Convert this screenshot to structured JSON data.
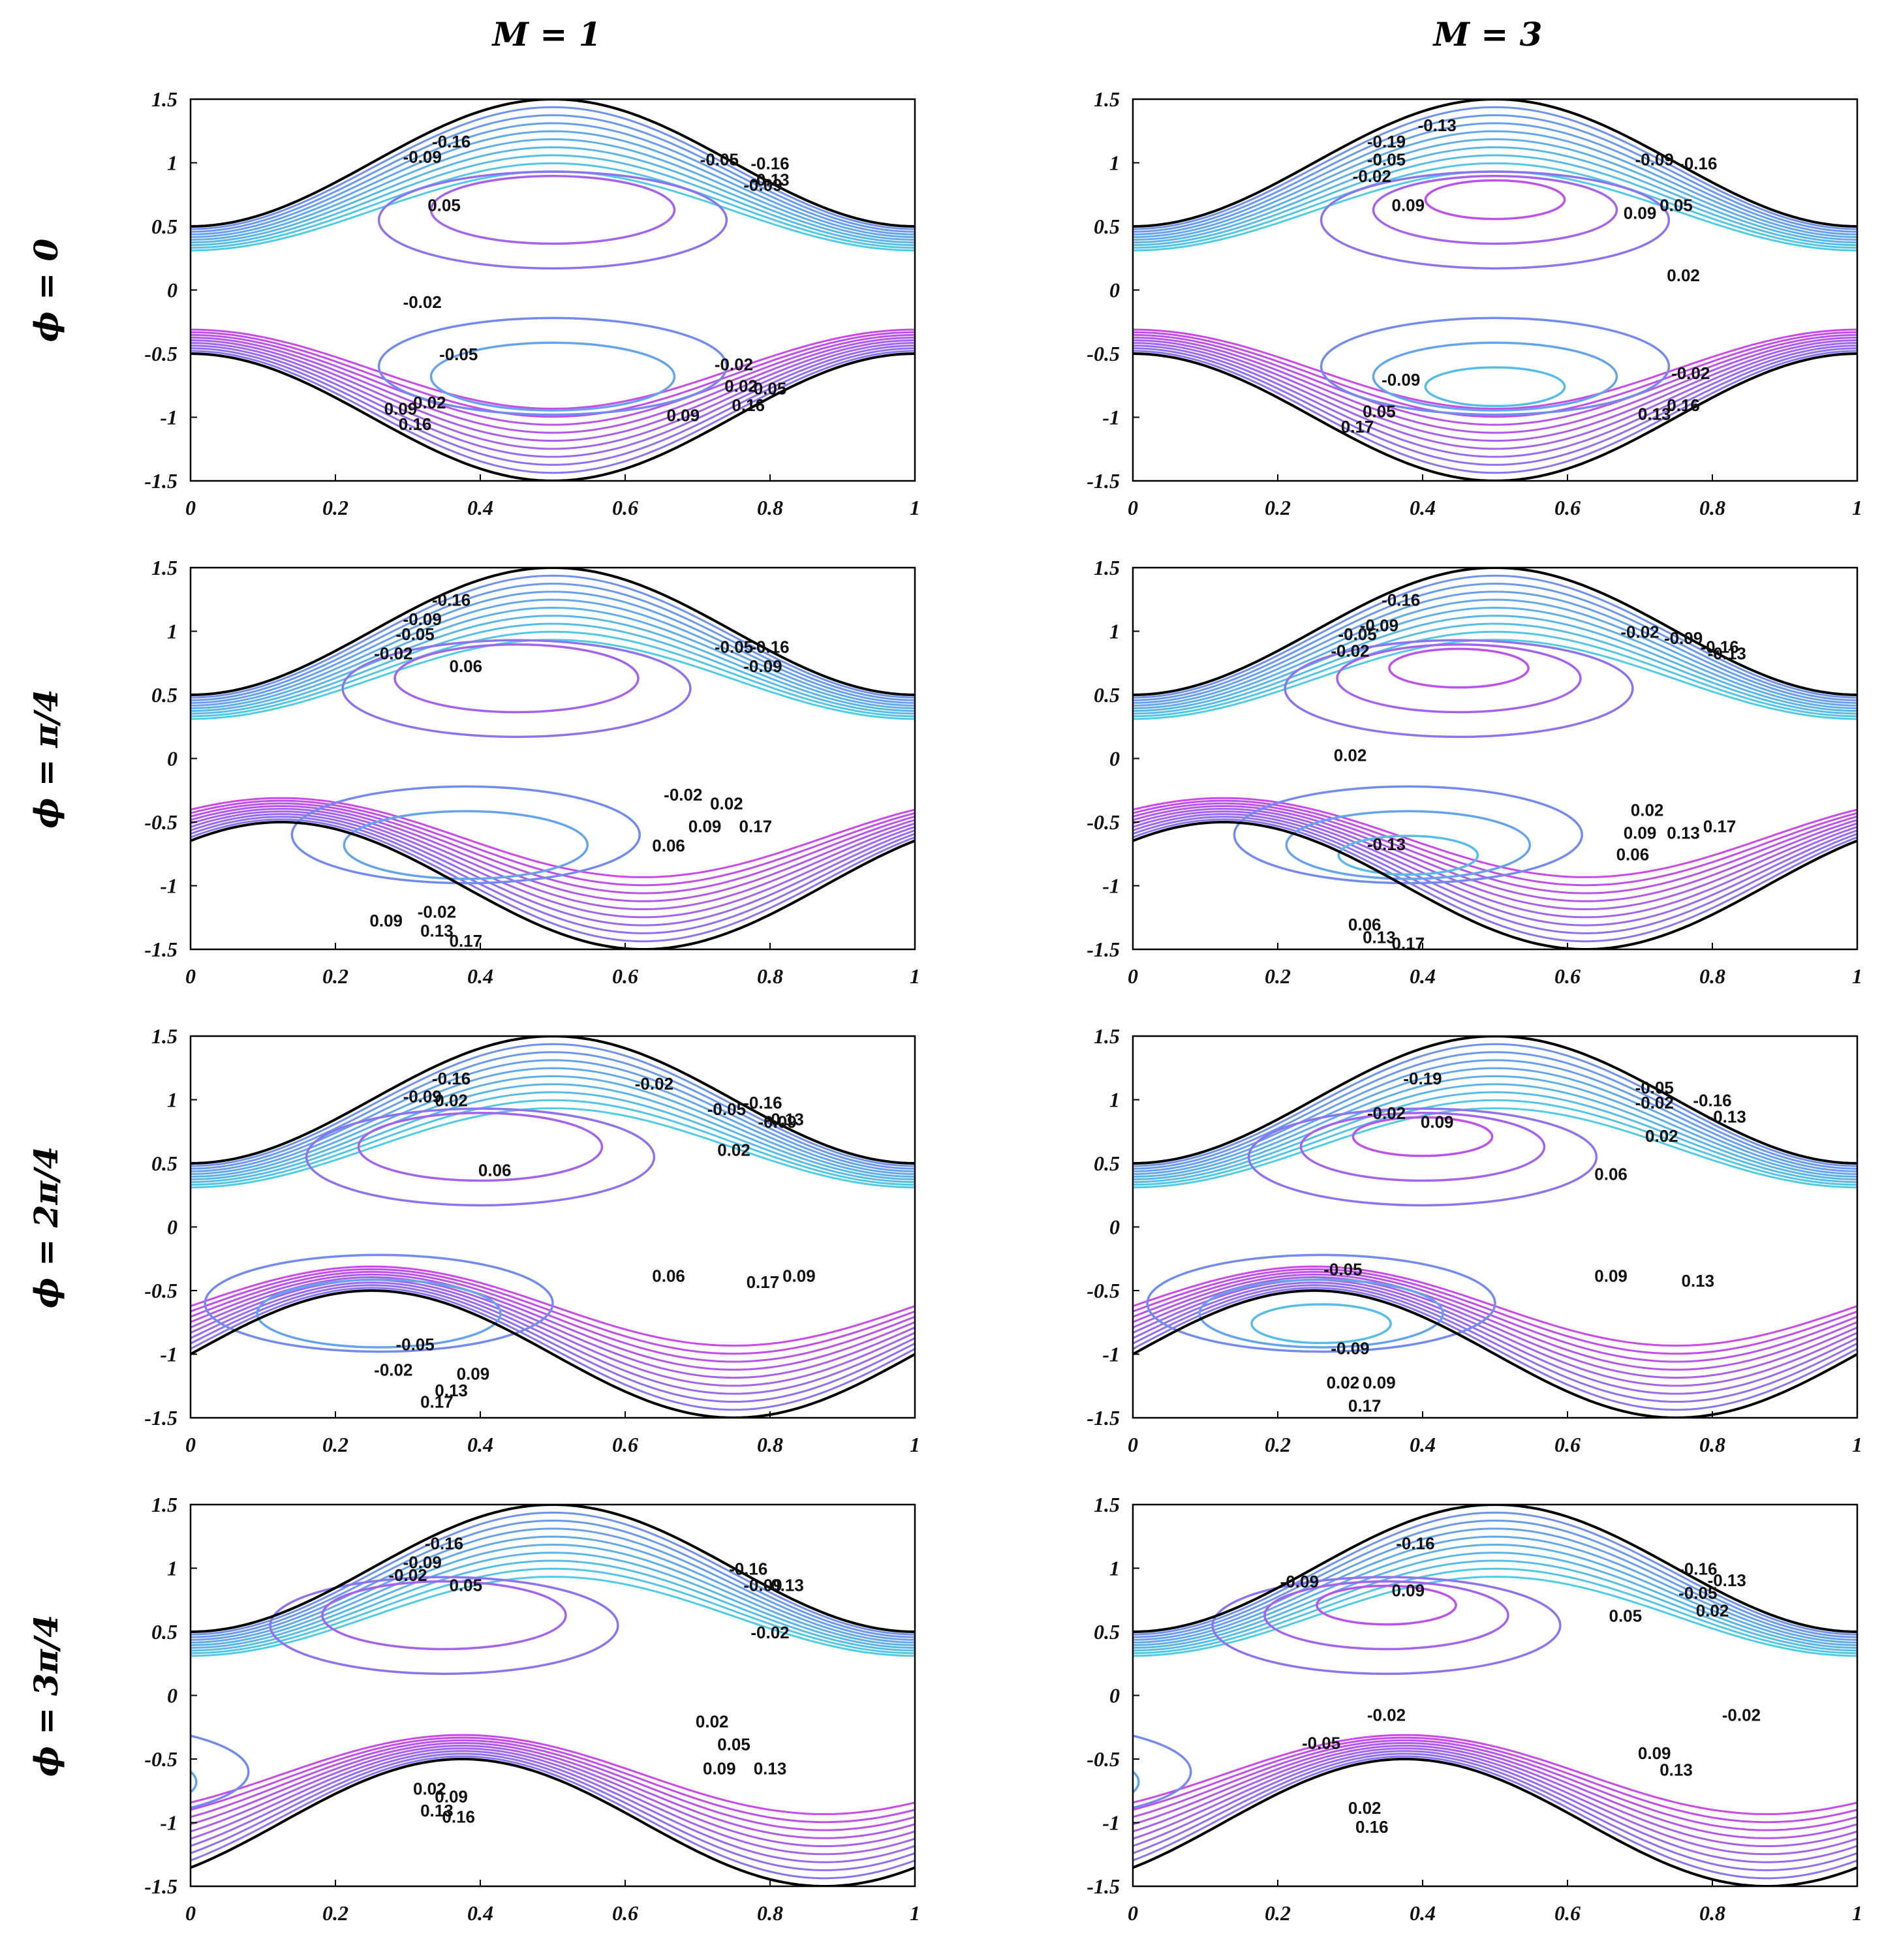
{
  "chart_data": {
    "type": "contour",
    "description_columns": [
      "M = 1",
      "M = 3"
    ],
    "column_titles": [
      "M = 1",
      "M = 3"
    ],
    "row_titles": [
      "ϕ = 0",
      "ϕ = π/4",
      "ϕ = 2π/4",
      "ϕ = 3π/4"
    ],
    "phases": [
      0,
      0.7854,
      1.5708,
      2.3562
    ],
    "xlim": [
      0,
      1
    ],
    "ylim": [
      -1.5,
      1.5
    ],
    "xticks": [
      "0",
      "0.2",
      "0.4",
      "0.6",
      "0.8",
      "1"
    ],
    "yticks": [
      "1.5",
      "1",
      "0.5",
      "0",
      "-0.5",
      "-1",
      "-1.5"
    ],
    "panels": [
      {
        "row": 0,
        "col": 0,
        "labels": [
          {
            "t": "-0.16",
            "x": 0.36,
            "y": 1.12
          },
          {
            "t": "-0.09",
            "x": 0.32,
            "y": 1.0
          },
          {
            "t": "-0.05",
            "x": 0.73,
            "y": 0.98
          },
          {
            "t": "-0.16",
            "x": 0.8,
            "y": 0.95
          },
          {
            "t": "-0.13",
            "x": 0.8,
            "y": 0.82
          },
          {
            "t": "-0.09",
            "x": 0.79,
            "y": 0.78
          },
          {
            "t": "0.05",
            "x": 0.35,
            "y": 0.62
          },
          {
            "t": "-0.02",
            "x": 0.32,
            "y": -0.14
          },
          {
            "t": "-0.05",
            "x": 0.37,
            "y": -0.55
          },
          {
            "t": "-0.02",
            "x": 0.75,
            "y": -0.63
          },
          {
            "t": "0.02",
            "x": 0.33,
            "y": -0.93
          },
          {
            "t": "0.09",
            "x": 0.29,
            "y": -0.98
          },
          {
            "t": "0.16",
            "x": 0.31,
            "y": -1.1
          },
          {
            "t": "0.02",
            "x": 0.76,
            "y": -0.8
          },
          {
            "t": "0.05",
            "x": 0.8,
            "y": -0.82
          },
          {
            "t": "0.16",
            "x": 0.77,
            "y": -0.95
          },
          {
            "t": "0.09",
            "x": 0.68,
            "y": -1.03
          }
        ]
      },
      {
        "row": 0,
        "col": 1,
        "labels": [
          {
            "t": "-0.13",
            "x": 0.42,
            "y": 1.25
          },
          {
            "t": "-0.19",
            "x": 0.35,
            "y": 1.12
          },
          {
            "t": "-0.05",
            "x": 0.35,
            "y": 0.98
          },
          {
            "t": "-0.02",
            "x": 0.33,
            "y": 0.85
          },
          {
            "t": "-0.09",
            "x": 0.72,
            "y": 0.98
          },
          {
            "t": "-0.16",
            "x": 0.78,
            "y": 0.95
          },
          {
            "t": "0.09",
            "x": 0.38,
            "y": 0.62
          },
          {
            "t": "0.09",
            "x": 0.7,
            "y": 0.56
          },
          {
            "t": "0.05",
            "x": 0.75,
            "y": 0.62
          },
          {
            "t": "0.02",
            "x": 0.76,
            "y": 0.07
          },
          {
            "t": "-0.09",
            "x": 0.37,
            "y": -0.75
          },
          {
            "t": "-0.02",
            "x": 0.77,
            "y": -0.7
          },
          {
            "t": "0.05",
            "x": 0.34,
            "y": -1.0
          },
          {
            "t": "0.16",
            "x": 0.76,
            "y": -0.95
          },
          {
            "t": "0.13",
            "x": 0.72,
            "y": -1.02
          },
          {
            "t": "0.17",
            "x": 0.31,
            "y": -1.12
          }
        ]
      },
      {
        "row": 1,
        "col": 0,
        "labels": [
          {
            "t": "-0.16",
            "x": 0.36,
            "y": 1.2
          },
          {
            "t": "-0.09",
            "x": 0.32,
            "y": 1.05
          },
          {
            "t": "-0.05",
            "x": 0.31,
            "y": 0.93
          },
          {
            "t": "-0.02",
            "x": 0.28,
            "y": 0.78
          },
          {
            "t": "0.06",
            "x": 0.38,
            "y": 0.68
          },
          {
            "t": "-0.05",
            "x": 0.75,
            "y": 0.83
          },
          {
            "t": "-0.16",
            "x": 0.8,
            "y": 0.83
          },
          {
            "t": "-0.09",
            "x": 0.79,
            "y": 0.68
          },
          {
            "t": "-0.02",
            "x": 0.68,
            "y": -0.33
          },
          {
            "t": "0.02",
            "x": 0.74,
            "y": -0.4
          },
          {
            "t": "0.09",
            "x": 0.71,
            "y": -0.58
          },
          {
            "t": "0.17",
            "x": 0.78,
            "y": -0.58
          },
          {
            "t": "0.06",
            "x": 0.66,
            "y": -0.73
          },
          {
            "t": "-0.02",
            "x": 0.34,
            "y": -1.25
          },
          {
            "t": "0.09",
            "x": 0.27,
            "y": -1.32
          },
          {
            "t": "0.13",
            "x": 0.34,
            "y": -1.4
          },
          {
            "t": "0.17",
            "x": 0.38,
            "y": -1.48
          }
        ]
      },
      {
        "row": 1,
        "col": 1,
        "labels": [
          {
            "t": "-0.16",
            "x": 0.37,
            "y": 1.2
          },
          {
            "t": "-0.09",
            "x": 0.34,
            "y": 1.0
          },
          {
            "t": "-0.05",
            "x": 0.31,
            "y": 0.93
          },
          {
            "t": "-0.02",
            "x": 0.3,
            "y": 0.8
          },
          {
            "t": "-0.02",
            "x": 0.7,
            "y": 0.95
          },
          {
            "t": "-0.09",
            "x": 0.76,
            "y": 0.9
          },
          {
            "t": "-0.16",
            "x": 0.81,
            "y": 0.83
          },
          {
            "t": "-0.13",
            "x": 0.82,
            "y": 0.78
          },
          {
            "t": "0.02",
            "x": 0.3,
            "y": -0.02
          },
          {
            "t": "-0.13",
            "x": 0.35,
            "y": -0.72
          },
          {
            "t": "0.02",
            "x": 0.71,
            "y": -0.45
          },
          {
            "t": "0.09",
            "x": 0.7,
            "y": -0.63
          },
          {
            "t": "0.13",
            "x": 0.76,
            "y": -0.63
          },
          {
            "t": "0.17",
            "x": 0.81,
            "y": -0.58
          },
          {
            "t": "0.06",
            "x": 0.69,
            "y": -0.8
          },
          {
            "t": "0.06",
            "x": 0.32,
            "y": -1.35
          },
          {
            "t": "0.13",
            "x": 0.34,
            "y": -1.45
          },
          {
            "t": "0.17",
            "x": 0.38,
            "y": -1.5
          }
        ]
      },
      {
        "row": 2,
        "col": 0,
        "labels": [
          {
            "t": "-0.16",
            "x": 0.36,
            "y": 1.12
          },
          {
            "t": "-0.09",
            "x": 0.32,
            "y": 0.98
          },
          {
            "t": "0.02",
            "x": 0.36,
            "y": 0.95
          },
          {
            "t": "-0.02",
            "x": 0.64,
            "y": 1.08
          },
          {
            "t": "-0.05",
            "x": 0.74,
            "y": 0.88
          },
          {
            "t": "-0.16",
            "x": 0.79,
            "y": 0.93
          },
          {
            "t": "-0.13",
            "x": 0.82,
            "y": 0.8
          },
          {
            "t": "-0.09",
            "x": 0.81,
            "y": 0.78
          },
          {
            "t": "0.06",
            "x": 0.42,
            "y": 0.4
          },
          {
            "t": "0.02",
            "x": 0.75,
            "y": 0.56
          },
          {
            "t": "0.06",
            "x": 0.66,
            "y": -0.43
          },
          {
            "t": "0.09",
            "x": 0.84,
            "y": -0.43
          },
          {
            "t": "0.17",
            "x": 0.79,
            "y": -0.48
          },
          {
            "t": "-0.05",
            "x": 0.31,
            "y": -0.97
          },
          {
            "t": "-0.02",
            "x": 0.28,
            "y": -1.17
          },
          {
            "t": "0.09",
            "x": 0.39,
            "y": -1.2
          },
          {
            "t": "0.13",
            "x": 0.36,
            "y": -1.33
          },
          {
            "t": "0.17",
            "x": 0.34,
            "y": -1.42
          }
        ]
      },
      {
        "row": 2,
        "col": 1,
        "labels": [
          {
            "t": "-0.19",
            "x": 0.4,
            "y": 1.12
          },
          {
            "t": "-0.02",
            "x": 0.35,
            "y": 0.85
          },
          {
            "t": "0.09",
            "x": 0.42,
            "y": 0.78
          },
          {
            "t": "-0.05",
            "x": 0.72,
            "y": 1.05
          },
          {
            "t": "-0.02",
            "x": 0.72,
            "y": 0.93
          },
          {
            "t": "-0.16",
            "x": 0.8,
            "y": 0.95
          },
          {
            "t": "-0.13",
            "x": 0.82,
            "y": 0.82
          },
          {
            "t": "0.02",
            "x": 0.73,
            "y": 0.67
          },
          {
            "t": "0.06",
            "x": 0.66,
            "y": 0.37
          },
          {
            "t": "-0.05",
            "x": 0.29,
            "y": -0.38
          },
          {
            "t": "-0.09",
            "x": 0.3,
            "y": -1.0
          },
          {
            "t": "0.02",
            "x": 0.29,
            "y": -1.27
          },
          {
            "t": "0.09",
            "x": 0.34,
            "y": -1.27
          },
          {
            "t": "0.17",
            "x": 0.32,
            "y": -1.45
          },
          {
            "t": "0.09",
            "x": 0.66,
            "y": -0.43
          },
          {
            "t": "0.13",
            "x": 0.78,
            "y": -0.47
          }
        ]
      },
      {
        "row": 3,
        "col": 0,
        "labels": [
          {
            "t": "-0.16",
            "x": 0.35,
            "y": 1.15
          },
          {
            "t": "-0.09",
            "x": 0.32,
            "y": 1.0
          },
          {
            "t": "-0.02",
            "x": 0.3,
            "y": 0.9
          },
          {
            "t": "0.05",
            "x": 0.38,
            "y": 0.82
          },
          {
            "t": "-0.16",
            "x": 0.77,
            "y": 0.95
          },
          {
            "t": "-0.09",
            "x": 0.79,
            "y": 0.82
          },
          {
            "t": "-0.13",
            "x": 0.82,
            "y": 0.82
          },
          {
            "t": "-0.02",
            "x": 0.8,
            "y": 0.45
          },
          {
            "t": "0.02",
            "x": 0.72,
            "y": -0.25
          },
          {
            "t": "0.05",
            "x": 0.75,
            "y": -0.43
          },
          {
            "t": "0.09",
            "x": 0.73,
            "y": -0.62
          },
          {
            "t": "0.13",
            "x": 0.8,
            "y": -0.62
          },
          {
            "t": "0.02",
            "x": 0.33,
            "y": -0.78
          },
          {
            "t": "0.09",
            "x": 0.36,
            "y": -0.84
          },
          {
            "t": "0.13",
            "x": 0.34,
            "y": -0.95
          },
          {
            "t": "0.16",
            "x": 0.37,
            "y": -1.0
          }
        ]
      },
      {
        "row": 3,
        "col": 1,
        "labels": [
          {
            "t": "-0.16",
            "x": 0.39,
            "y": 1.15
          },
          {
            "t": "-0.09",
            "x": 0.23,
            "y": 0.85
          },
          {
            "t": "0.09",
            "x": 0.38,
            "y": 0.78
          },
          {
            "t": "-0.16",
            "x": 0.78,
            "y": 0.95
          },
          {
            "t": "-0.13",
            "x": 0.82,
            "y": 0.86
          },
          {
            "t": "-0.05",
            "x": 0.78,
            "y": 0.76
          },
          {
            "t": "0.02",
            "x": 0.8,
            "y": 0.62
          },
          {
            "t": "0.05",
            "x": 0.68,
            "y": 0.58
          },
          {
            "t": "-0.02",
            "x": 0.35,
            "y": -0.2
          },
          {
            "t": "-0.05",
            "x": 0.26,
            "y": -0.42
          },
          {
            "t": "-0.02",
            "x": 0.84,
            "y": -0.2
          },
          {
            "t": "0.09",
            "x": 0.72,
            "y": -0.5
          },
          {
            "t": "0.13",
            "x": 0.75,
            "y": -0.63
          },
          {
            "t": "0.02",
            "x": 0.32,
            "y": -0.93
          },
          {
            "t": "0.16",
            "x": 0.33,
            "y": -1.08
          }
        ]
      }
    ]
  }
}
